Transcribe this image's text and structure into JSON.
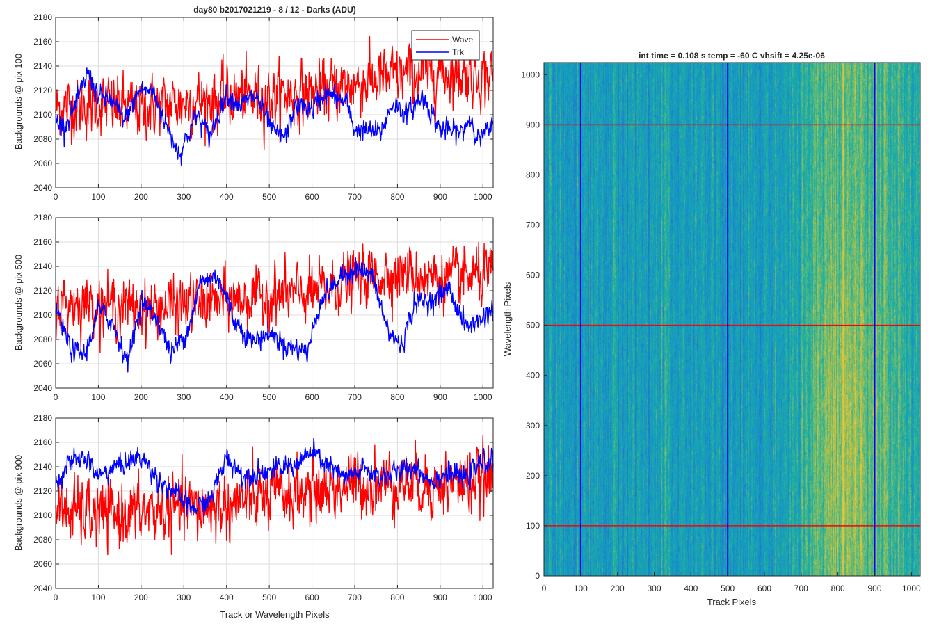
{
  "figure": {
    "title": "day80 b2017021219 - 8 / 12 - Darks (ADU)",
    "xlabel": "Track or Wavelength Pixels",
    "ylabels": [
      "Backgrounds @ pix 100",
      "Backgrounds @ pix 500",
      "Backgrounds @ pix 900"
    ],
    "legend": [
      "Wave",
      "Trk"
    ],
    "colors": {
      "wave": "#ff0000",
      "trk": "#0000ff",
      "grid": "#dcdcdc",
      "axis": "#262626"
    }
  },
  "image_panel": {
    "title": "int time = 0.108 s   temp = -60 C   vhsift = 4.25e-06",
    "xlabel": "Track Pixels",
    "ylabel": "Wavelength Pixels",
    "xticks": [
      "0",
      "100",
      "200",
      "300",
      "400",
      "500",
      "600",
      "700",
      "800",
      "900",
      "1000"
    ],
    "yticks": [
      "0",
      "100",
      "200",
      "300",
      "400",
      "500",
      "600",
      "700",
      "800",
      "900",
      "1000"
    ],
    "colormap": "parula",
    "marker_columns": [
      100,
      500,
      900
    ],
    "marker_rows": [
      100,
      500,
      900
    ],
    "marker_column_color": "#0000ff",
    "marker_row_color": "#ff0000"
  },
  "chart_data": [
    {
      "type": "line",
      "title": "day80 b2017021219 - 8 / 12 - Darks (ADU)",
      "xlabel": "",
      "ylabel": "Backgrounds @ pix 100",
      "xlim": [
        0,
        1024
      ],
      "ylim": [
        2040,
        2180
      ],
      "xticks": [
        "0",
        "100",
        "200",
        "300",
        "400",
        "500",
        "600",
        "700",
        "800",
        "900",
        "1000"
      ],
      "yticks": [
        "2040",
        "2060",
        "2080",
        "2100",
        "2120",
        "2140",
        "2160",
        "2180"
      ],
      "grid": true,
      "legend_position": "top-right",
      "series": [
        {
          "name": "Wave",
          "color": "#ff0000",
          "noise": 14,
          "x": [
            0,
            100,
            200,
            300,
            400,
            500,
            600,
            700,
            800,
            900,
            1024
          ],
          "y": [
            2105,
            2108,
            2105,
            2110,
            2114,
            2115,
            2118,
            2125,
            2132,
            2135,
            2132
          ]
        },
        {
          "name": "Trk",
          "color": "#0000ff",
          "noise": 5,
          "x": [
            0,
            20,
            50,
            75,
            100,
            130,
            160,
            200,
            230,
            260,
            290,
            330,
            360,
            400,
            430,
            470,
            510,
            540,
            560,
            600,
            630,
            680,
            700,
            760,
            790,
            820,
            860,
            900,
            950,
            970,
            990,
            1024
          ],
          "y": [
            2095,
            2090,
            2110,
            2135,
            2115,
            2112,
            2095,
            2122,
            2118,
            2090,
            2068,
            2100,
            2082,
            2118,
            2108,
            2115,
            2085,
            2082,
            2108,
            2104,
            2118,
            2110,
            2088,
            2085,
            2110,
            2100,
            2115,
            2088,
            2085,
            2098,
            2080,
            2090
          ]
        }
      ]
    },
    {
      "type": "line",
      "title": "",
      "xlabel": "",
      "ylabel": "Backgrounds @ pix 500",
      "xlim": [
        0,
        1024
      ],
      "ylim": [
        2040,
        2180
      ],
      "xticks": [
        "0",
        "100",
        "200",
        "300",
        "400",
        "500",
        "600",
        "700",
        "800",
        "900",
        "1000"
      ],
      "yticks": [
        "2040",
        "2060",
        "2080",
        "2100",
        "2120",
        "2140",
        "2160",
        "2180"
      ],
      "grid": true,
      "series": [
        {
          "name": "Wave",
          "color": "#ff0000",
          "noise": 13,
          "x": [
            0,
            100,
            200,
            300,
            400,
            500,
            600,
            700,
            800,
            900,
            1024
          ],
          "y": [
            2110,
            2110,
            2105,
            2108,
            2112,
            2115,
            2118,
            2130,
            2135,
            2130,
            2132
          ]
        },
        {
          "name": "Trk",
          "color": "#0000ff",
          "noise": 5,
          "x": [
            0,
            20,
            40,
            70,
            100,
            130,
            170,
            200,
            240,
            270,
            310,
            340,
            380,
            420,
            460,
            500,
            540,
            590,
            620,
            660,
            700,
            740,
            780,
            810,
            840,
            880,
            920,
            960,
            990,
            1024
          ],
          "y": [
            2110,
            2085,
            2070,
            2068,
            2105,
            2095,
            2062,
            2112,
            2095,
            2068,
            2088,
            2128,
            2132,
            2095,
            2078,
            2085,
            2075,
            2070,
            2112,
            2128,
            2140,
            2132,
            2085,
            2075,
            2110,
            2112,
            2122,
            2090,
            2095,
            2105
          ]
        }
      ]
    },
    {
      "type": "line",
      "title": "",
      "xlabel": "Track or Wavelength Pixels",
      "ylabel": "Backgrounds @ pix 900",
      "xlim": [
        0,
        1024
      ],
      "ylim": [
        2040,
        2180
      ],
      "xticks": [
        "0",
        "100",
        "200",
        "300",
        "400",
        "500",
        "600",
        "700",
        "800",
        "900",
        "1000"
      ],
      "yticks": [
        "2040",
        "2060",
        "2080",
        "2100",
        "2120",
        "2140",
        "2160",
        "2180"
      ],
      "grid": true,
      "series": [
        {
          "name": "Wave",
          "color": "#ff0000",
          "noise": 15,
          "x": [
            0,
            100,
            200,
            300,
            400,
            500,
            600,
            700,
            800,
            900,
            1024
          ],
          "y": [
            2105,
            2100,
            2102,
            2105,
            2108,
            2115,
            2120,
            2125,
            2128,
            2125,
            2130
          ]
        },
        {
          "name": "Trk",
          "color": "#0000ff",
          "noise": 5,
          "x": [
            0,
            30,
            70,
            100,
            140,
            200,
            240,
            280,
            320,
            360,
            400,
            440,
            480,
            520,
            560,
            600,
            640,
            680,
            720,
            760,
            800,
            840,
            880,
            920,
            960,
            990,
            1024
          ],
          "y": [
            2128,
            2142,
            2148,
            2132,
            2140,
            2148,
            2130,
            2118,
            2105,
            2112,
            2148,
            2132,
            2136,
            2138,
            2142,
            2152,
            2140,
            2130,
            2138,
            2132,
            2135,
            2140,
            2128,
            2135,
            2130,
            2142,
            2145
          ]
        }
      ]
    }
  ]
}
